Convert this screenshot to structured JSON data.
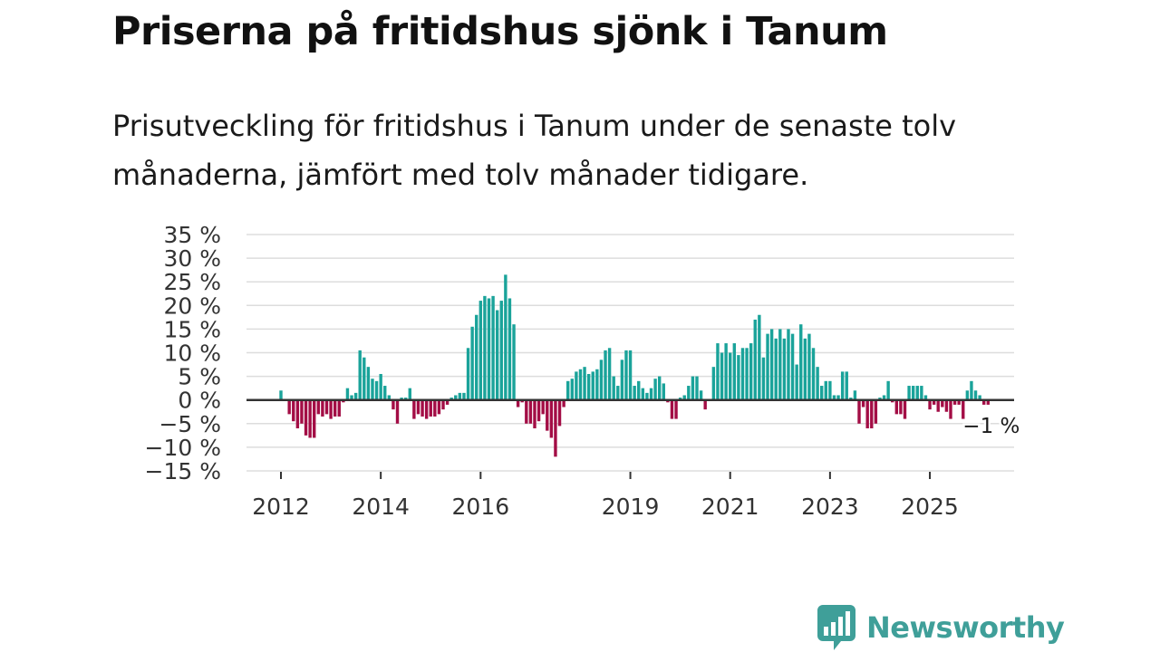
{
  "title": "Priserna på fritidshus sjönk i Tanum",
  "subtitle": "Prisutveckling för fritidshus i Tanum under de senaste tolv månaderna, jämfört med tolv månader tidigare.",
  "brand": {
    "name": "Newsworthy",
    "color": "#3f9f99",
    "icon": "bar-chart-bubble-icon"
  },
  "colors": {
    "positive": "#1aa39a",
    "negative": "#a30d45",
    "zero_line": "#333333",
    "grid": "#dddddd"
  },
  "chart_data": {
    "type": "bar",
    "title": "Priserna på fritidshus sjönk i Tanum",
    "xlabel": "",
    "ylabel": "",
    "ylim": [
      -15,
      35
    ],
    "y_ticks": [
      35,
      30,
      25,
      20,
      15,
      10,
      5,
      0,
      -5,
      -10,
      -15
    ],
    "y_tick_labels": [
      "35 %",
      "30 %",
      "25 %",
      "20 %",
      "15 %",
      "10 %",
      "5 %",
      "0 %",
      "−5 %",
      "−10 %",
      "−15 %"
    ],
    "x_ticks": [
      {
        "label": "2012",
        "month_index": 0
      },
      {
        "label": "2014",
        "month_index": 24
      },
      {
        "label": "2016",
        "month_index": 48
      },
      {
        "label": "2019",
        "month_index": 84
      },
      {
        "label": "2021",
        "month_index": 108
      },
      {
        "label": "2023",
        "month_index": 132
      },
      {
        "label": "2025",
        "month_index": 156
      }
    ],
    "start": "2012-01",
    "frequency": "monthly",
    "last_label": "−1 %",
    "values": [
      2,
      null,
      -3,
      -4.5,
      -6,
      -5,
      -7.5,
      -8,
      -8,
      -3,
      -3.5,
      -3,
      -4,
      -3.5,
      -3.5,
      -0.5,
      2.5,
      1,
      1.5,
      10.5,
      9,
      7,
      4.5,
      4,
      5.5,
      3,
      1,
      -2,
      -5,
      0.5,
      0.5,
      2.5,
      -4,
      -3,
      -3.5,
      -4,
      -3.5,
      -3.5,
      -3,
      -2,
      -1,
      0.5,
      1,
      1.5,
      1.5,
      11,
      15.5,
      18,
      21,
      22,
      21.5,
      22,
      19,
      21,
      26.5,
      21.5,
      16,
      -1.5,
      -0.5,
      -5,
      -5,
      -6,
      -4.5,
      -3,
      -6.5,
      -8,
      -12,
      -5.5,
      -1.5,
      4,
      4.5,
      6,
      6.5,
      7,
      5.5,
      6,
      6.5,
      8.5,
      10.5,
      11,
      5,
      3,
      8.5,
      10.5,
      10.5,
      3,
      4,
      2.5,
      1.5,
      2.5,
      4.5,
      5,
      3.5,
      -0.5,
      -4,
      -4,
      0.5,
      1,
      3,
      5,
      5,
      2,
      -2,
      0,
      7,
      12,
      10,
      12,
      10,
      12,
      9.5,
      11,
      11,
      12,
      17,
      18,
      9,
      14,
      15,
      13,
      15,
      13,
      15,
      14,
      7.5,
      16,
      13,
      14,
      11,
      7,
      3,
      4,
      4,
      1,
      1,
      6,
      6,
      0.5,
      2,
      -5,
      -1.5,
      -6,
      -6,
      -5,
      0.5,
      1,
      4,
      -0.5,
      -3,
      -3,
      -4,
      3,
      3,
      3,
      3,
      1,
      -2,
      -1,
      -2.5,
      -1.5,
      -2.5,
      -4,
      -1,
      -1,
      -4,
      2,
      4,
      2,
      1,
      -1,
      -1
    ]
  }
}
